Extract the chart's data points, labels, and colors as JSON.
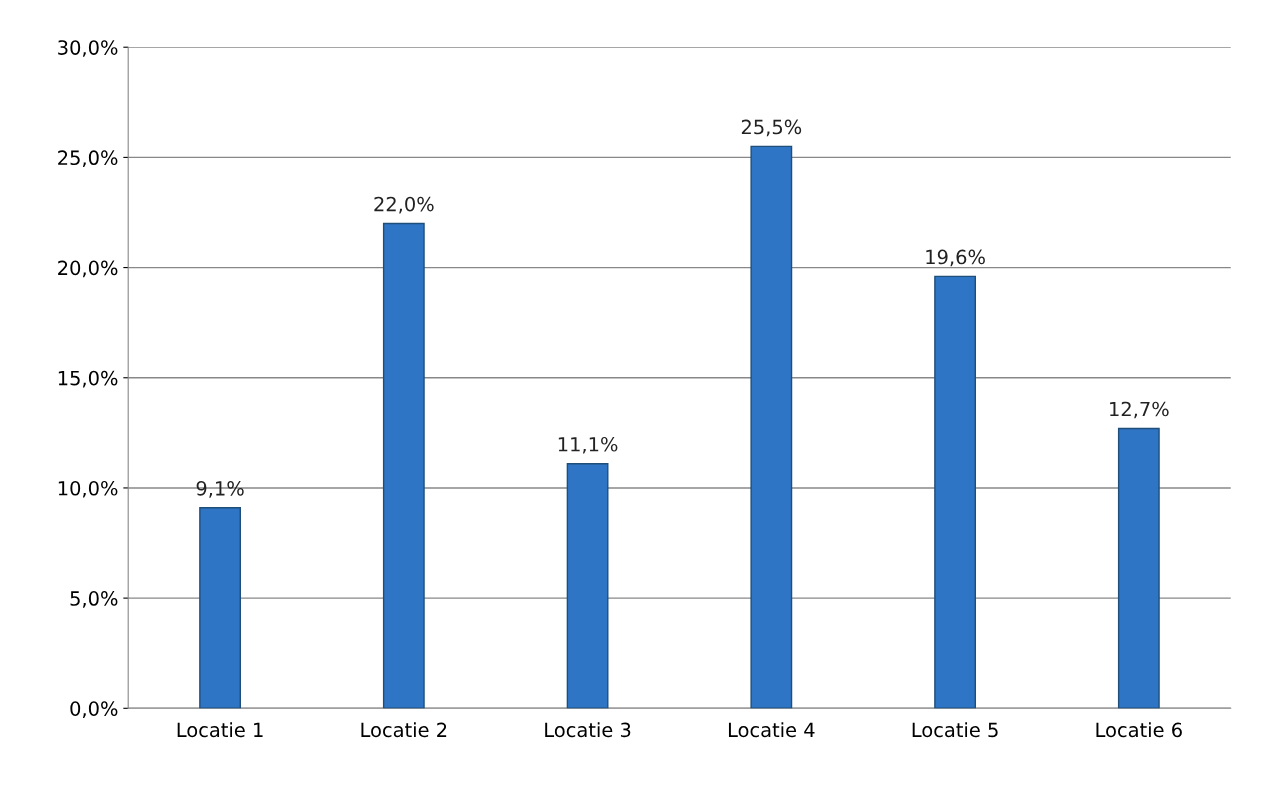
{
  "chart_data": {
    "type": "bar",
    "categories": [
      "Locatie 1",
      "Locatie 2",
      "Locatie 3",
      "Locatie 4",
      "Locatie 5",
      "Locatie 6"
    ],
    "values": [
      9.1,
      22.0,
      11.1,
      25.5,
      19.6,
      12.7
    ],
    "value_labels": [
      "9,1%",
      "22,0%",
      "11,1%",
      "25,5%",
      "19,6%",
      "12,7%"
    ],
    "color": "#2e75c6",
    "ylim": [
      0,
      30
    ],
    "yticks": [
      {
        "value": 0,
        "label": "0,0%"
      },
      {
        "value": 5,
        "label": "5,0%"
      },
      {
        "value": 10,
        "label": "10,0%"
      },
      {
        "value": 15,
        "label": "15,0%"
      },
      {
        "value": 20,
        "label": "20,0%"
      },
      {
        "value": 25,
        "label": "25,0%"
      },
      {
        "value": 30,
        "label": "30,0%"
      }
    ],
    "grid": "y"
  }
}
